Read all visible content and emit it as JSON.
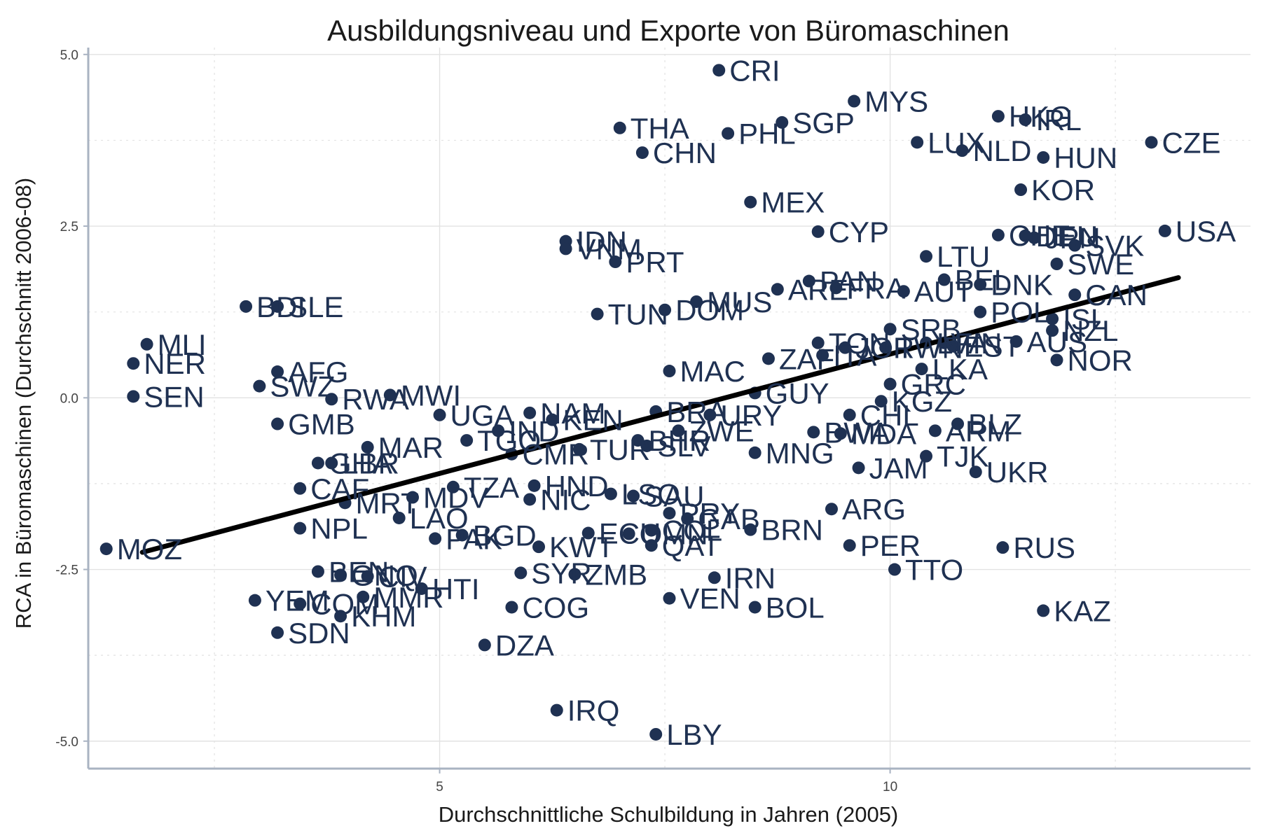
{
  "colors": {
    "point": "#1f3152",
    "label": "#1f3152",
    "trend": "#000000",
    "grid": "#e2e2e2",
    "axis": "#a9b3c2"
  },
  "chart_data": {
    "type": "scatter",
    "title": "Ausbildungsniveau und Exporte von Büromaschinen",
    "xlabel": "Durchschnittliche Schulbildung in Jahren (2005)",
    "ylabel": "RCA in Büromaschinen (Durchschnitt 2006-08)",
    "xlim": [
      1.1,
      14.0
    ],
    "ylim": [
      -5.4,
      5.1
    ],
    "xticks": [
      5,
      10
    ],
    "xtick_labels": [
      "5",
      "10"
    ],
    "yticks": [
      -5.0,
      -2.5,
      0.0,
      2.5,
      5.0
    ],
    "ytick_labels": [
      "-5.0",
      "-2.5",
      "0.0",
      "2.5",
      "5.0"
    ],
    "grid": true,
    "trend_line": {
      "x": [
        1.7,
        13.2
      ],
      "y": [
        -2.25,
        1.75
      ]
    },
    "points": [
      {
        "label": "CRI",
        "x": 8.1,
        "y": 4.77
      },
      {
        "label": "MYS",
        "x": 9.6,
        "y": 4.32
      },
      {
        "label": "HKG",
        "x": 11.2,
        "y": 4.1
      },
      {
        "label": "IRL",
        "x": 11.5,
        "y": 4.05
      },
      {
        "label": "SGP",
        "x": 8.8,
        "y": 4.01
      },
      {
        "label": "THA",
        "x": 7.0,
        "y": 3.93
      },
      {
        "label": "PHL",
        "x": 8.2,
        "y": 3.85
      },
      {
        "label": "LUX",
        "x": 10.3,
        "y": 3.72
      },
      {
        "label": "CZE",
        "x": 12.9,
        "y": 3.72
      },
      {
        "label": "NLD",
        "x": 10.8,
        "y": 3.6
      },
      {
        "label": "CHN",
        "x": 7.25,
        "y": 3.57
      },
      {
        "label": "HUN",
        "x": 11.7,
        "y": 3.5
      },
      {
        "label": "KOR",
        "x": 11.45,
        "y": 3.03
      },
      {
        "label": "MEX",
        "x": 8.45,
        "y": 2.85
      },
      {
        "label": "USA",
        "x": 13.05,
        "y": 2.43
      },
      {
        "label": "CYP",
        "x": 9.2,
        "y": 2.42
      },
      {
        "label": "CHE",
        "x": 11.2,
        "y": 2.37
      },
      {
        "label": "DEU",
        "x": 11.5,
        "y": 2.36
      },
      {
        "label": "JPN",
        "x": 11.6,
        "y": 2.33
      },
      {
        "label": "SVK",
        "x": 12.05,
        "y": 2.22
      },
      {
        "label": "IDN",
        "x": 6.4,
        "y": 2.28
      },
      {
        "label": "VNM",
        "x": 6.4,
        "y": 2.17
      },
      {
        "label": "LTU",
        "x": 10.4,
        "y": 2.06
      },
      {
        "label": "PRT",
        "x": 6.95,
        "y": 1.98
      },
      {
        "label": "SWE",
        "x": 11.85,
        "y": 1.95
      },
      {
        "label": "PAN",
        "x": 9.1,
        "y": 1.7
      },
      {
        "label": "BEL",
        "x": 10.6,
        "y": 1.72
      },
      {
        "label": "DNK",
        "x": 11.0,
        "y": 1.65
      },
      {
        "label": "ARE",
        "x": 8.75,
        "y": 1.58
      },
      {
        "label": "FRA",
        "x": 9.4,
        "y": 1.6
      },
      {
        "label": "AUT",
        "x": 10.15,
        "y": 1.55
      },
      {
        "label": "CAN",
        "x": 12.05,
        "y": 1.5
      },
      {
        "label": "MUS",
        "x": 7.85,
        "y": 1.4
      },
      {
        "label": "BDI",
        "x": 2.85,
        "y": 1.33
      },
      {
        "label": "SLE",
        "x": 3.2,
        "y": 1.33
      },
      {
        "label": "DOM",
        "x": 7.5,
        "y": 1.28
      },
      {
        "label": "TUN",
        "x": 6.75,
        "y": 1.22
      },
      {
        "label": "POL",
        "x": 11.0,
        "y": 1.25
      },
      {
        "label": "ISL",
        "x": 11.8,
        "y": 1.15
      },
      {
        "label": "NZL",
        "x": 11.8,
        "y": 0.98
      },
      {
        "label": "SRB",
        "x": 10.0,
        "y": 1.0
      },
      {
        "label": "AUS",
        "x": 11.4,
        "y": 0.82
      },
      {
        "label": "MLI",
        "x": 1.75,
        "y": 0.78
      },
      {
        "label": "TON",
        "x": 9.2,
        "y": 0.8
      },
      {
        "label": "LVA",
        "x": 10.4,
        "y": 0.8
      },
      {
        "label": "FIN",
        "x": 10.6,
        "y": 0.8
      },
      {
        "label": "JOR",
        "x": 9.5,
        "y": 0.73
      },
      {
        "label": "TWN",
        "x": 9.95,
        "y": 0.73
      },
      {
        "label": "EST",
        "x": 10.7,
        "y": 0.75
      },
      {
        "label": "ZAF",
        "x": 8.65,
        "y": 0.57
      },
      {
        "label": "ITA",
        "x": 9.25,
        "y": 0.62
      },
      {
        "label": "LKA",
        "x": 10.35,
        "y": 0.42
      },
      {
        "label": "NOR",
        "x": 11.85,
        "y": 0.55
      },
      {
        "label": "NER",
        "x": 1.6,
        "y": 0.5
      },
      {
        "label": "AFG",
        "x": 3.2,
        "y": 0.38
      },
      {
        "label": "MAC",
        "x": 7.55,
        "y": 0.39
      },
      {
        "label": "GRC",
        "x": 10.0,
        "y": 0.2
      },
      {
        "label": "SWZ",
        "x": 3.0,
        "y": 0.17
      },
      {
        "label": "GUY",
        "x": 8.5,
        "y": 0.07
      },
      {
        "label": "SEN",
        "x": 1.6,
        "y": 0.02
      },
      {
        "label": "MWI",
        "x": 4.45,
        "y": 0.04
      },
      {
        "label": "RWA",
        "x": 3.8,
        "y": -0.02
      },
      {
        "label": "KGZ",
        "x": 9.9,
        "y": -0.05
      },
      {
        "label": "UGA",
        "x": 5.0,
        "y": -0.25
      },
      {
        "label": "NAM",
        "x": 6.0,
        "y": -0.22
      },
      {
        "label": "BRA",
        "x": 7.4,
        "y": -0.2
      },
      {
        "label": "URY",
        "x": 8.0,
        "y": -0.25
      },
      {
        "label": "CHL",
        "x": 9.55,
        "y": -0.25
      },
      {
        "label": "KEN",
        "x": 6.25,
        "y": -0.32
      },
      {
        "label": "BLZ",
        "x": 10.75,
        "y": -0.38
      },
      {
        "label": "GMB",
        "x": 3.2,
        "y": -0.38
      },
      {
        "label": "IND",
        "x": 5.65,
        "y": -0.48
      },
      {
        "label": "ZWE",
        "x": 7.65,
        "y": -0.48
      },
      {
        "label": "BWA",
        "x": 9.15,
        "y": -0.5
      },
      {
        "label": "ARM",
        "x": 10.5,
        "y": -0.48
      },
      {
        "label": "MDA",
        "x": 9.45,
        "y": -0.52
      },
      {
        "label": "TGO",
        "x": 5.3,
        "y": -0.62
      },
      {
        "label": "BHR",
        "x": 7.2,
        "y": -0.62
      },
      {
        "label": "SLV",
        "x": 7.3,
        "y": -0.7
      },
      {
        "label": "MAR",
        "x": 4.2,
        "y": -0.72
      },
      {
        "label": "TUR",
        "x": 6.55,
        "y": -0.75
      },
      {
        "label": "CMR",
        "x": 5.8,
        "y": -0.82
      },
      {
        "label": "MNG",
        "x": 8.5,
        "y": -0.8
      },
      {
        "label": "TJK",
        "x": 10.4,
        "y": -0.85
      },
      {
        "label": "IRN",
        "x": 8.05,
        "y": -2.62
      },
      {
        "label": "GHA",
        "x": 3.65,
        "y": -0.95
      },
      {
        "label": "LBR",
        "x": 3.8,
        "y": -0.95
      },
      {
        "label": "JAM",
        "x": 9.65,
        "y": -1.02
      },
      {
        "label": "UKR",
        "x": 10.95,
        "y": -1.08
      },
      {
        "label": "TZA",
        "x": 5.15,
        "y": -1.3
      },
      {
        "label": "HND",
        "x": 6.05,
        "y": -1.28
      },
      {
        "label": "CAF",
        "x": 3.45,
        "y": -1.32
      },
      {
        "label": "LSO",
        "x": 6.9,
        "y": -1.4
      },
      {
        "label": "SAU",
        "x": 7.15,
        "y": -1.43
      },
      {
        "label": "MDV",
        "x": 4.7,
        "y": -1.45
      },
      {
        "label": "NIC",
        "x": 6.0,
        "y": -1.48
      },
      {
        "label": "MRT",
        "x": 3.95,
        "y": -1.53
      },
      {
        "label": "ARG",
        "x": 9.35,
        "y": -1.62
      },
      {
        "label": "PRY",
        "x": 7.55,
        "y": -1.68
      },
      {
        "label": "GAB",
        "x": 7.75,
        "y": -1.76
      },
      {
        "label": "LAO",
        "x": 4.55,
        "y": -1.75
      },
      {
        "label": "NPL",
        "x": 3.45,
        "y": -1.9
      },
      {
        "label": "BRN",
        "x": 8.45,
        "y": -1.92
      },
      {
        "label": "ECU",
        "x": 6.65,
        "y": -1.97
      },
      {
        "label": "BGD",
        "x": 5.25,
        "y": -2.0
      },
      {
        "label": "OMN",
        "x": 7.1,
        "y": -1.98
      },
      {
        "label": "COL",
        "x": 7.35,
        "y": -1.93
      },
      {
        "label": "PAK",
        "x": 4.95,
        "y": -2.05
      },
      {
        "label": "QAT",
        "x": 7.35,
        "y": -2.15
      },
      {
        "label": "MOZ",
        "x": 1.3,
        "y": -2.2
      },
      {
        "label": "KWT",
        "x": 6.1,
        "y": -2.17
      },
      {
        "label": "PER",
        "x": 9.55,
        "y": -2.15
      },
      {
        "label": "RUS",
        "x": 11.25,
        "y": -2.18
      },
      {
        "label": "TTO",
        "x": 10.05,
        "y": -2.5
      },
      {
        "label": "BEN",
        "x": 3.65,
        "y": -2.53
      },
      {
        "label": "SYR",
        "x": 5.9,
        "y": -2.55
      },
      {
        "label": "ZMB",
        "x": 6.5,
        "y": -2.57
      },
      {
        "label": "GNQ",
        "x": 3.9,
        "y": -2.58
      },
      {
        "label": "CIV",
        "x": 4.2,
        "y": -2.6
      },
      {
        "label": "HTI",
        "x": 4.8,
        "y": -2.78
      },
      {
        "label": "MMR",
        "x": 4.15,
        "y": -2.9
      },
      {
        "label": "VEN",
        "x": 7.55,
        "y": -2.92
      },
      {
        "label": "YEM",
        "x": 2.95,
        "y": -2.95
      },
      {
        "label": "COM",
        "x": 3.45,
        "y": -3.0
      },
      {
        "label": "BOL",
        "x": 8.5,
        "y": -3.05
      },
      {
        "label": "COG",
        "x": 5.8,
        "y": -3.05
      },
      {
        "label": "KAZ",
        "x": 11.7,
        "y": -3.1
      },
      {
        "label": "KHM",
        "x": 3.9,
        "y": -3.18
      },
      {
        "label": "SDN",
        "x": 3.2,
        "y": -3.42
      },
      {
        "label": "DZA",
        "x": 5.5,
        "y": -3.6
      },
      {
        "label": "IRQ",
        "x": 6.3,
        "y": -4.55
      },
      {
        "label": "LBY",
        "x": 7.4,
        "y": -4.9
      }
    ]
  }
}
